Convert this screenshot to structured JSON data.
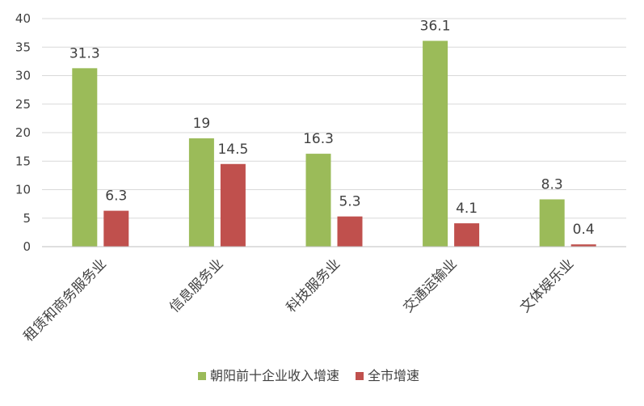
{
  "chart_data": {
    "type": "bar",
    "title": "",
    "xlabel": "",
    "ylabel": "",
    "ylim": [
      0,
      40
    ],
    "yticks": [
      0,
      5,
      10,
      15,
      20,
      25,
      30,
      35,
      40
    ],
    "grid": true,
    "legend_position": "bottom",
    "categories": [
      "租赁和商务服务业",
      "信息服务业",
      "科技服务业",
      "交通运输业",
      "文体娱乐业"
    ],
    "series": [
      {
        "name": "朝阳前十企业收入增速",
        "color": "#9bbb59",
        "values": [
          31.3,
          19,
          16.3,
          36.1,
          8.3
        ]
      },
      {
        "name": "全市增速",
        "color": "#c0504d",
        "values": [
          6.3,
          14.5,
          5.3,
          4.1,
          0.4
        ]
      }
    ]
  }
}
